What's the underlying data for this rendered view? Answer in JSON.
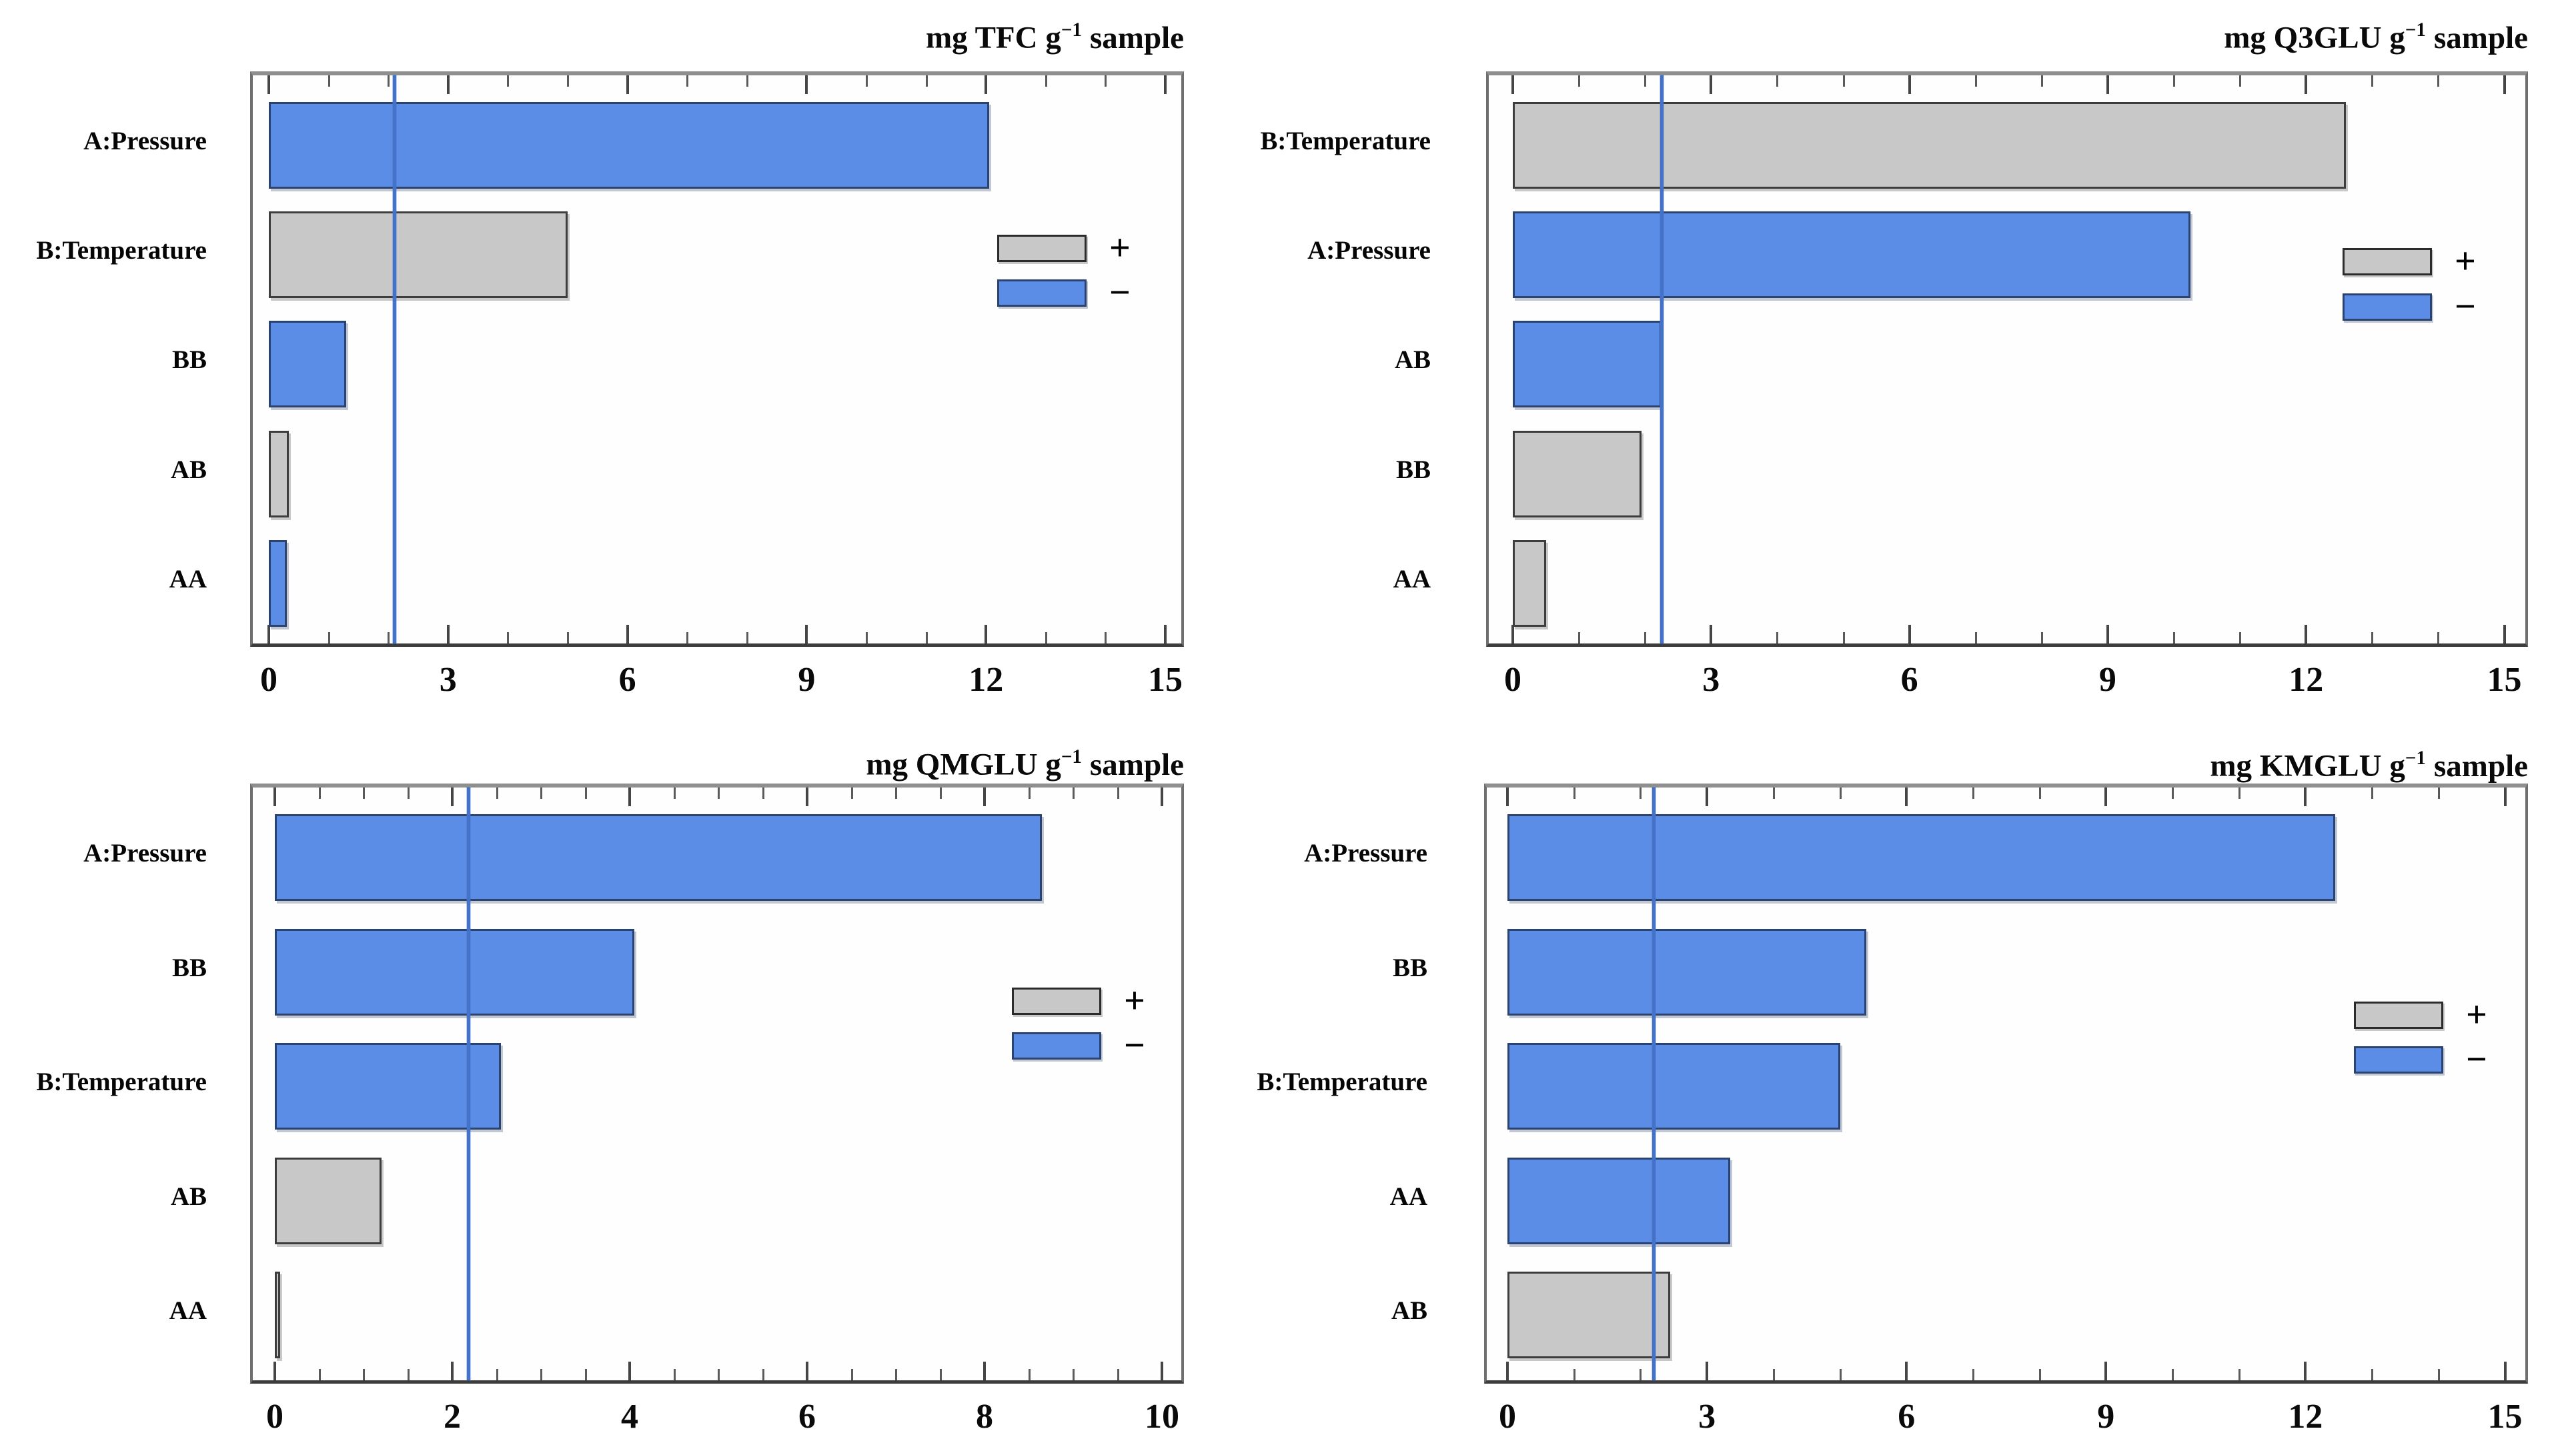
{
  "legend": {
    "positive_label": "+",
    "negative_label": "−"
  },
  "colors": {
    "positive_fill": "#c8c8c8",
    "positive_border": "#3d3d3d",
    "negative_fill": "#5c8de6",
    "negative_border": "#2a4370",
    "reference_line": "#4472c8",
    "plot_border": "#6f6f6f",
    "text": "#000000"
  },
  "chart_data": [
    {
      "type": "bar",
      "orientation": "horizontal",
      "id": "tfc",
      "title": {
        "prefix": "mg TFC g",
        "exponent": "−1",
        "suffix": "sample"
      },
      "categories": [
        "A:Pressure",
        "B:Temperature",
        "BB",
        "AB",
        "AA"
      ],
      "values": [
        12.05,
        5.0,
        1.3,
        0.33,
        0.3
      ],
      "signs": [
        "-",
        "+",
        "-",
        "+",
        "-"
      ],
      "reference_line": 2.1,
      "xlim": [
        0,
        15
      ],
      "x_ticks": [
        0,
        3,
        6,
        9,
        12,
        15
      ],
      "minor_tick_step": 1,
      "grid": false,
      "legend_position": "inside-right"
    },
    {
      "type": "bar",
      "orientation": "horizontal",
      "id": "q3glu",
      "title": {
        "prefix": "mg Q3GLU g",
        "exponent": "−1",
        "suffix": "sample"
      },
      "categories": [
        "B:Temperature",
        "A:Pressure",
        "AB",
        "BB",
        "AA"
      ],
      "values": [
        12.6,
        10.25,
        2.25,
        1.95,
        0.5
      ],
      "signs": [
        "+",
        "-",
        "-",
        "+",
        "+"
      ],
      "reference_line": 2.25,
      "xlim": [
        0,
        15
      ],
      "x_ticks": [
        0,
        3,
        6,
        9,
        12,
        15
      ],
      "minor_tick_step": 1,
      "grid": false,
      "legend_position": "inside-right"
    },
    {
      "type": "bar",
      "orientation": "horizontal",
      "id": "qmglu",
      "title": {
        "prefix": "mg QMGLU g",
        "exponent": "−1",
        "suffix": "sample"
      },
      "categories": [
        "A:Pressure",
        "BB",
        "B:Temperature",
        "AB",
        "AA"
      ],
      "values": [
        8.65,
        4.05,
        2.55,
        1.2,
        0.06
      ],
      "signs": [
        "-",
        "-",
        "-",
        "+",
        "+"
      ],
      "reference_line": 2.18,
      "xlim": [
        0,
        10
      ],
      "x_ticks": [
        0,
        2,
        4,
        6,
        8,
        10
      ],
      "minor_tick_step": 0.5,
      "grid": false,
      "legend_position": "inside-right"
    },
    {
      "type": "bar",
      "orientation": "horizontal",
      "id": "kmglu",
      "title": {
        "prefix": "mg KMGLU g",
        "exponent": "−1",
        "suffix": "sample"
      },
      "categories": [
        "A:Pressure",
        "BB",
        "B:Temperature",
        "AA",
        "AB"
      ],
      "values": [
        12.45,
        5.4,
        5.0,
        3.35,
        2.45
      ],
      "signs": [
        "-",
        "-",
        "-",
        "-",
        "+"
      ],
      "reference_line": 2.2,
      "xlim": [
        0,
        15
      ],
      "x_ticks": [
        0,
        3,
        6,
        9,
        12,
        15
      ],
      "minor_tick_step": 1,
      "grid": false,
      "legend_position": "inside-right"
    }
  ]
}
